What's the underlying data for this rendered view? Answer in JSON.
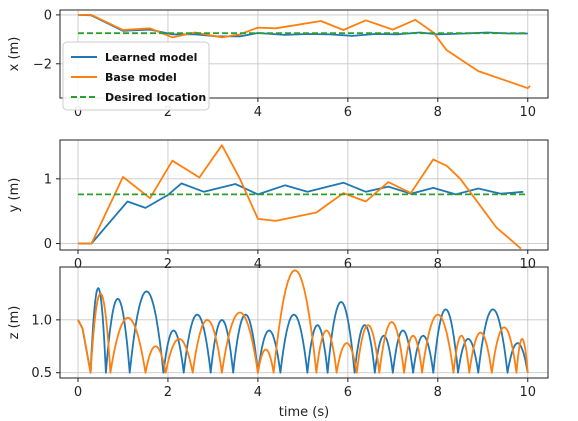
{
  "chart_data": [
    {
      "type": "line",
      "ylabel": "x (m)",
      "xlim": [
        -0.4,
        10.45
      ],
      "ylim": [
        -3.4,
        0.2
      ],
      "xticks": [
        0,
        2,
        4,
        6,
        8,
        10
      ],
      "yticks": [
        -2,
        0
      ],
      "grid": true,
      "legend": {
        "position": "lower-left",
        "entries": [
          "Learned model",
          "Base model",
          "Desired location"
        ]
      },
      "series": [
        {
          "name": "Learned model",
          "color": "#1f77b4",
          "x": [
            0,
            0.3,
            1.0,
            1.6,
            2.1,
            2.6,
            3.1,
            3.6,
            4.0,
            4.6,
            5.1,
            5.6,
            6.1,
            6.6,
            7.1,
            7.6,
            8.0,
            8.6,
            9.1,
            9.6,
            10.0
          ],
          "y": [
            0,
            -0.02,
            -0.65,
            -0.6,
            -0.8,
            -0.8,
            -0.88,
            -0.88,
            -0.74,
            -0.82,
            -0.78,
            -0.8,
            -0.86,
            -0.78,
            -0.8,
            -0.72,
            -0.8,
            -0.76,
            -0.72,
            -0.76,
            -0.76
          ]
        },
        {
          "name": "Base model",
          "color": "#ff7f0e",
          "x": [
            0,
            0.3,
            1.0,
            1.6,
            2.1,
            2.6,
            3.2,
            3.6,
            4.0,
            4.4,
            5.4,
            5.9,
            6.4,
            7.0,
            7.5,
            7.9,
            8.2,
            8.9,
            10.0,
            10.05
          ],
          "y": [
            0,
            0,
            -0.62,
            -0.55,
            -0.92,
            -0.72,
            -0.92,
            -0.8,
            -0.52,
            -0.55,
            -0.25,
            -0.62,
            -0.22,
            -0.6,
            -0.2,
            -0.72,
            -1.45,
            -2.3,
            -3.0,
            -2.9
          ]
        },
        {
          "name": "Desired location",
          "color": "#2ca02c",
          "style": "dashed",
          "x": [
            0,
            10.0
          ],
          "y": [
            -0.75,
            -0.75
          ]
        }
      ]
    },
    {
      "type": "line",
      "ylabel": "y (m)",
      "xlim": [
        -0.4,
        10.45
      ],
      "ylim": [
        -0.1,
        1.6
      ],
      "xticks": [
        0,
        2,
        4,
        6,
        8,
        10
      ],
      "yticks": [
        0,
        1
      ],
      "grid": true,
      "series": [
        {
          "name": "Learned model",
          "color": "#1f77b4",
          "x": [
            0,
            0.3,
            1.1,
            1.5,
            2.0,
            2.3,
            2.8,
            3.5,
            4.0,
            4.6,
            5.1,
            5.9,
            6.4,
            6.9,
            7.4,
            7.9,
            8.4,
            8.9,
            9.4,
            9.9
          ],
          "y": [
            0,
            0,
            0.65,
            0.55,
            0.75,
            0.93,
            0.8,
            0.92,
            0.76,
            0.9,
            0.8,
            0.94,
            0.8,
            0.88,
            0.77,
            0.86,
            0.76,
            0.85,
            0.77,
            0.8
          ]
        },
        {
          "name": "Base model",
          "color": "#ff7f0e",
          "x": [
            0,
            0.3,
            1.0,
            1.6,
            2.1,
            2.7,
            3.2,
            3.6,
            4.0,
            4.4,
            5.3,
            5.9,
            6.4,
            6.9,
            7.4,
            7.9,
            8.2,
            8.5,
            9.3,
            9.85
          ],
          "y": [
            0,
            0,
            1.03,
            0.7,
            1.28,
            1.02,
            1.52,
            1.0,
            0.38,
            0.35,
            0.48,
            0.78,
            0.65,
            0.95,
            0.78,
            1.3,
            1.2,
            1.0,
            0.25,
            -0.08
          ]
        },
        {
          "name": "Desired location",
          "color": "#2ca02c",
          "style": "dashed",
          "x": [
            0,
            10.0
          ],
          "y": [
            0.76,
            0.76
          ]
        }
      ]
    },
    {
      "type": "line",
      "ylabel": "z (m)",
      "xlabel": "time (s)",
      "xlim": [
        -0.4,
        10.45
      ],
      "ylim": [
        0.45,
        1.5
      ],
      "xticks": [
        0,
        2,
        4,
        6,
        8,
        10
      ],
      "yticks": [
        0.5,
        1.0
      ],
      "grid": true,
      "series": [
        {
          "name": "Learned model",
          "color": "#1f77b4",
          "bounces": [
            [
              0.28,
              0.62,
              1.3
            ],
            [
              0.62,
              1.15,
              1.2
            ],
            [
              1.15,
              1.9,
              1.27
            ],
            [
              1.9,
              2.35,
              0.9
            ],
            [
              2.35,
              2.95,
              1.05
            ],
            [
              2.95,
              3.45,
              1.0
            ],
            [
              3.45,
              4.0,
              1.05
            ],
            [
              4.0,
              4.5,
              0.9
            ],
            [
              4.5,
              5.1,
              1.05
            ],
            [
              5.1,
              5.55,
              0.95
            ],
            [
              5.55,
              6.15,
              1.17
            ],
            [
              6.15,
              6.6,
              0.95
            ],
            [
              6.6,
              7.0,
              0.85
            ],
            [
              7.0,
              7.45,
              0.9
            ],
            [
              7.45,
              7.9,
              0.85
            ],
            [
              7.9,
              8.45,
              1.1
            ],
            [
              8.45,
              8.9,
              0.82
            ],
            [
              8.9,
              9.55,
              1.1
            ],
            [
              9.55,
              10.0,
              0.78
            ]
          ]
        },
        {
          "name": "Base model",
          "color": "#ff7f0e",
          "bounces": [
            [
              0.28,
              0.72,
              1.25
            ],
            [
              0.72,
              1.5,
              1.02
            ],
            [
              1.5,
              1.95,
              0.75
            ],
            [
              1.95,
              2.55,
              0.82
            ],
            [
              2.55,
              3.2,
              1.0
            ],
            [
              3.2,
              4.0,
              1.07
            ],
            [
              4.0,
              4.35,
              0.72
            ],
            [
              4.35,
              5.3,
              1.47
            ],
            [
              5.3,
              5.75,
              0.9
            ],
            [
              5.75,
              6.2,
              0.78
            ],
            [
              6.2,
              6.7,
              0.95
            ],
            [
              6.7,
              7.25,
              0.98
            ],
            [
              7.25,
              7.65,
              0.85
            ],
            [
              7.65,
              8.35,
              1.05
            ],
            [
              8.35,
              8.7,
              0.85
            ],
            [
              8.7,
              9.2,
              0.88
            ],
            [
              9.2,
              9.75,
              0.93
            ],
            [
              9.75,
              10.0,
              0.82
            ]
          ]
        }
      ]
    }
  ]
}
